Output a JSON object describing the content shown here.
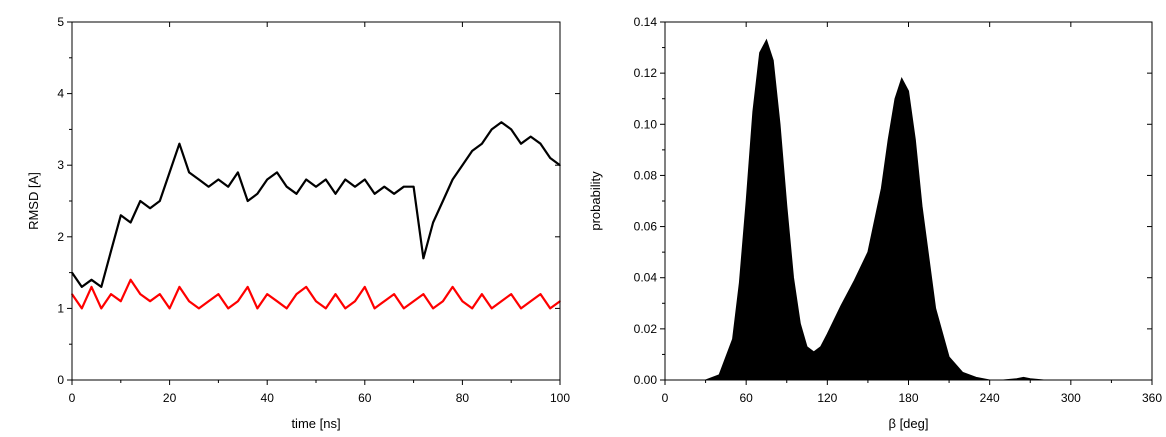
{
  "chart_data": [
    {
      "type": "line",
      "title": "",
      "xlabel": "time [ns]",
      "ylabel": "RMSD [A]",
      "xlim": [
        0,
        100
      ],
      "ylim": [
        0,
        5
      ],
      "xticks": [
        "0",
        "20",
        "40",
        "60",
        "80",
        "100"
      ],
      "yticks": [
        "0",
        "1",
        "2",
        "3",
        "4",
        "5"
      ],
      "grid": false,
      "legend": "none",
      "x": [
        0,
        2,
        4,
        6,
        8,
        10,
        12,
        14,
        16,
        18,
        20,
        22,
        24,
        26,
        28,
        30,
        32,
        34,
        36,
        38,
        40,
        42,
        44,
        46,
        48,
        50,
        52,
        54,
        56,
        58,
        60,
        62,
        64,
        66,
        68,
        70,
        72,
        74,
        76,
        78,
        80,
        82,
        84,
        86,
        88,
        90,
        92,
        94,
        96,
        98,
        100
      ],
      "series": [
        {
          "color": "#000000",
          "values": [
            1.5,
            1.3,
            1.4,
            1.3,
            1.8,
            2.3,
            2.2,
            2.5,
            2.4,
            2.5,
            2.9,
            3.3,
            2.9,
            2.8,
            2.7,
            2.8,
            2.7,
            2.9,
            2.5,
            2.6,
            2.8,
            2.9,
            2.7,
            2.6,
            2.8,
            2.7,
            2.8,
            2.6,
            2.8,
            2.7,
            2.8,
            2.6,
            2.7,
            2.6,
            2.7,
            2.7,
            1.7,
            2.2,
            2.5,
            2.8,
            3.0,
            3.2,
            3.3,
            3.5,
            3.6,
            3.5,
            3.3,
            3.4,
            3.3,
            3.1,
            3.0
          ]
        },
        {
          "color": "#ff0000",
          "values": [
            1.2,
            1.0,
            1.3,
            1.0,
            1.2,
            1.1,
            1.4,
            1.2,
            1.1,
            1.2,
            1.0,
            1.3,
            1.1,
            1.0,
            1.1,
            1.2,
            1.0,
            1.1,
            1.3,
            1.0,
            1.2,
            1.1,
            1.0,
            1.2,
            1.3,
            1.1,
            1.0,
            1.2,
            1.0,
            1.1,
            1.3,
            1.0,
            1.1,
            1.2,
            1.0,
            1.1,
            1.2,
            1.0,
            1.1,
            1.3,
            1.1,
            1.0,
            1.2,
            1.0,
            1.1,
            1.2,
            1.0,
            1.1,
            1.2,
            1.0,
            1.1
          ]
        }
      ]
    },
    {
      "type": "area",
      "title": "",
      "xlabel": "β [deg]",
      "ylabel": "probability",
      "xlim": [
        0,
        360
      ],
      "ylim": [
        0,
        0.14
      ],
      "xticks": [
        "0",
        "60",
        "120",
        "180",
        "240",
        "300",
        "360"
      ],
      "yticks": [
        "0.00",
        "0.02",
        "0.04",
        "0.06",
        "0.08",
        "0.10",
        "0.12",
        "0.14"
      ],
      "grid": false,
      "legend": "none",
      "x": [
        30,
        40,
        50,
        55,
        60,
        65,
        70,
        75,
        80,
        85,
        90,
        95,
        100,
        105,
        110,
        115,
        120,
        130,
        140,
        150,
        160,
        165,
        170,
        175,
        180,
        185,
        190,
        200,
        210,
        220,
        230,
        240,
        250,
        260,
        265,
        270,
        280
      ],
      "series": [
        {
          "color": "#000000",
          "values": [
            0.0,
            0.002,
            0.016,
            0.038,
            0.07,
            0.105,
            0.128,
            0.133,
            0.125,
            0.1,
            0.068,
            0.04,
            0.022,
            0.013,
            0.011,
            0.013,
            0.018,
            0.029,
            0.039,
            0.05,
            0.075,
            0.094,
            0.11,
            0.118,
            0.113,
            0.094,
            0.068,
            0.028,
            0.009,
            0.003,
            0.001,
            0.0,
            0.0,
            0.0005,
            0.001,
            0.0005,
            0.0
          ]
        }
      ]
    }
  ]
}
